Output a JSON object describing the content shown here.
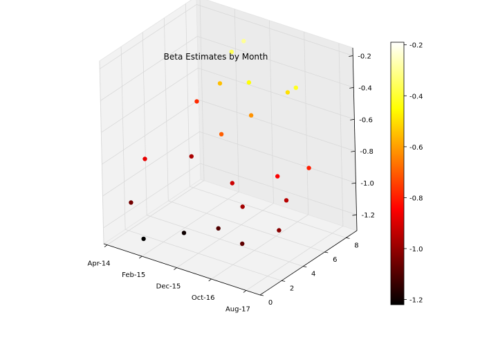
{
  "chart_data": {
    "type": "scatter",
    "projection": "3d",
    "title": "Beta Estimates by Month",
    "xlabel": "",
    "ylabel": "",
    "zlabel": "",
    "x_tick_labels": [
      "Apr-14",
      "Feb-15",
      "Dec-15",
      "Oct-16",
      "Aug-17"
    ],
    "y_tick_labels": [
      "0",
      "2",
      "4",
      "6",
      "8"
    ],
    "z_tick_labels": [
      "-0.2",
      "-0.4",
      "-0.6",
      "-0.8",
      "-1.0",
      "-1.2"
    ],
    "colorbar_tick_labels": [
      "-0.2",
      "-0.4",
      "-0.6",
      "-0.8",
      "-1.0",
      "-1.2"
    ],
    "ylim": [
      0,
      9
    ],
    "zlim": [
      -1.3,
      -0.15
    ],
    "colorbar_range": [
      -1.22,
      -0.19
    ],
    "colormap": "hot",
    "grid": true,
    "marker_color_encodes": "z",
    "series": [
      {
        "points": [
          {
            "x": "Apr-14",
            "y": 8.5,
            "z": -0.78
          },
          {
            "x": "Jun-14",
            "y": 3.0,
            "z": -0.88
          },
          {
            "x": "Aug-14",
            "y": 1.0,
            "z": -1.05
          },
          {
            "x": "Oct-14",
            "y": 6.0,
            "z": -0.97
          },
          {
            "x": "Jan-15",
            "y": 0.5,
            "z": -1.22
          },
          {
            "x": "Feb-15",
            "y": 7.5,
            "z": -0.55
          },
          {
            "x": "Apr-15",
            "y": 8.0,
            "z": -0.36
          },
          {
            "x": "Jun-15",
            "y": 8.5,
            "z": -0.3
          },
          {
            "x": "Aug-15",
            "y": 2.0,
            "z": -1.2
          },
          {
            "x": "Oct-15",
            "y": 5.0,
            "z": -0.7
          },
          {
            "x": "Dec-15",
            "y": 7.0,
            "z": -0.45
          },
          {
            "x": "Feb-16",
            "y": 6.5,
            "z": -0.62
          },
          {
            "x": "Apr-16",
            "y": 4.0,
            "z": -0.92
          },
          {
            "x": "Jun-16",
            "y": 2.0,
            "z": -1.1
          },
          {
            "x": "Aug-16",
            "y": 8.0,
            "z": -0.5
          },
          {
            "x": "Oct-16",
            "y": 3.0,
            "z": -0.98
          },
          {
            "x": "Dec-16",
            "y": 7.5,
            "z": -0.42
          },
          {
            "x": "Feb-17",
            "y": 5.0,
            "z": -0.85
          },
          {
            "x": "Apr-17",
            "y": 1.0,
            "z": -1.08
          },
          {
            "x": "Jun-17",
            "y": 4.5,
            "z": -0.95
          },
          {
            "x": "Aug-17",
            "y": 6.0,
            "z": -0.8
          },
          {
            "x": "Oct-17",
            "y": 2.5,
            "z": -1.02
          }
        ]
      }
    ]
  }
}
